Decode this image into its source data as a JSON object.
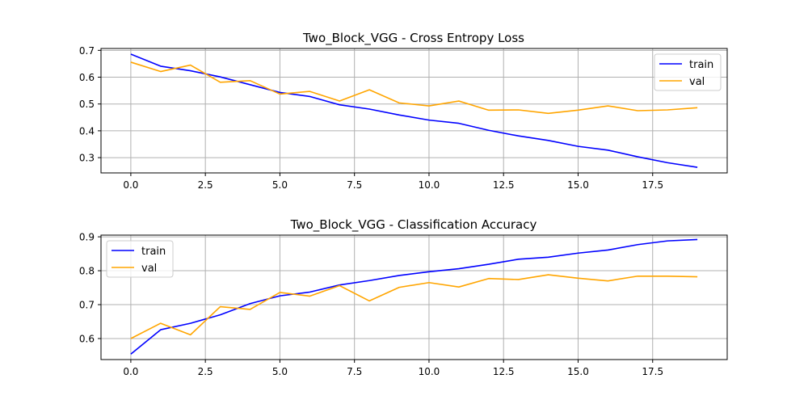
{
  "chart_data": [
    {
      "type": "line",
      "title": "Two_Block_VGG - Cross Entropy Loss",
      "xlabel": "",
      "ylabel": "",
      "xlim": [
        -1,
        20
      ],
      "ylim": [
        0.243,
        0.707
      ],
      "xticks": [
        0,
        2.5,
        5,
        7.5,
        10,
        12.5,
        15,
        17.5
      ],
      "xtick_labels": [
        "0.0",
        "2.5",
        "5.0",
        "7.5",
        "10.0",
        "12.5",
        "15.0",
        "17.5"
      ],
      "yticks": [
        0.3,
        0.4,
        0.5,
        0.6,
        0.7
      ],
      "ytick_labels": [
        "0.3",
        "0.4",
        "0.5",
        "0.6",
        "0.7"
      ],
      "grid": true,
      "legend": "top-right",
      "x": [
        0,
        1,
        2,
        3,
        4,
        5,
        6,
        7,
        8,
        9,
        10,
        11,
        12,
        13,
        14,
        15,
        16,
        17,
        18,
        19
      ],
      "series": [
        {
          "name": "train",
          "color": "#0000ff",
          "values": [
            0.686,
            0.641,
            0.624,
            0.601,
            0.572,
            0.543,
            0.528,
            0.497,
            0.481,
            0.459,
            0.44,
            0.428,
            0.402,
            0.381,
            0.364,
            0.342,
            0.328,
            0.303,
            0.281,
            0.264
          ]
        },
        {
          "name": "val",
          "color": "#ffa500",
          "values": [
            0.656,
            0.621,
            0.645,
            0.581,
            0.587,
            0.537,
            0.547,
            0.511,
            0.553,
            0.504,
            0.493,
            0.511,
            0.477,
            0.478,
            0.465,
            0.477,
            0.493,
            0.475,
            0.478,
            0.486
          ]
        }
      ]
    },
    {
      "type": "line",
      "title": "Two_Block_VGG - Classification Accuracy",
      "xlabel": "",
      "ylabel": "",
      "xlim": [
        -1,
        20
      ],
      "ylim": [
        0.538,
        0.905
      ],
      "xticks": [
        0,
        2.5,
        5,
        7.5,
        10,
        12.5,
        15,
        17.5
      ],
      "xtick_labels": [
        "0.0",
        "2.5",
        "5.0",
        "7.5",
        "10.0",
        "12.5",
        "15.0",
        "17.5"
      ],
      "yticks": [
        0.6,
        0.7,
        0.8,
        0.9
      ],
      "ytick_labels": [
        "0.6",
        "0.7",
        "0.8",
        "0.9"
      ],
      "grid": true,
      "legend": "top-left",
      "x": [
        0,
        1,
        2,
        3,
        4,
        5,
        6,
        7,
        8,
        9,
        10,
        11,
        12,
        13,
        14,
        15,
        16,
        17,
        18,
        19
      ],
      "series": [
        {
          "name": "train",
          "color": "#0000ff",
          "values": [
            0.554,
            0.626,
            0.645,
            0.67,
            0.703,
            0.726,
            0.737,
            0.758,
            0.771,
            0.786,
            0.797,
            0.806,
            0.819,
            0.834,
            0.84,
            0.852,
            0.861,
            0.877,
            0.888,
            0.892
          ]
        },
        {
          "name": "val",
          "color": "#ffa500",
          "values": [
            0.6,
            0.645,
            0.611,
            0.694,
            0.686,
            0.736,
            0.725,
            0.756,
            0.711,
            0.751,
            0.765,
            0.752,
            0.777,
            0.774,
            0.788,
            0.778,
            0.77,
            0.784,
            0.784,
            0.782
          ]
        }
      ]
    }
  ]
}
